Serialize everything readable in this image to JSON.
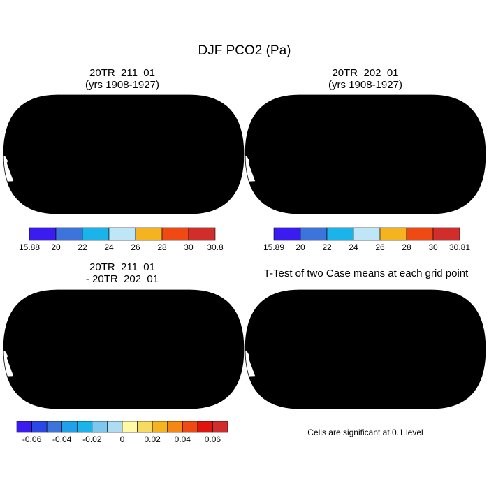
{
  "chart_data": [
    {
      "type": "heatmap",
      "projection": "robinson",
      "title": "20TR_211_01",
      "subtitle": "(yrs 1908-1927)",
      "colorbar": {
        "end_labels": [
          "15.88",
          "30.8"
        ],
        "ticks": [
          "20",
          "22",
          "24",
          "26",
          "28",
          "30"
        ],
        "colors": [
          "#3a1cf0",
          "#3d74dc",
          "#1ab4ea",
          "#bfe6f7",
          "#f5b41f",
          "#f04a14",
          "#d12d2b"
        ]
      }
    },
    {
      "type": "heatmap",
      "projection": "robinson",
      "title": "20TR_202_01",
      "subtitle": "(yrs 1908-1927)",
      "colorbar": {
        "end_labels": [
          "15.89",
          "30.81"
        ],
        "ticks": [
          "20",
          "22",
          "24",
          "26",
          "28",
          "30"
        ],
        "colors": [
          "#3a1cf0",
          "#3d74dc",
          "#1ab4ea",
          "#bfe6f7",
          "#f5b41f",
          "#f04a14",
          "#d12d2b"
        ]
      }
    },
    {
      "type": "heatmap",
      "projection": "robinson",
      "title": "20TR_211_01",
      "subtitle": "- 20TR_202_01",
      "colorbar": {
        "ticks": [
          "-0.06",
          "-0.04",
          "-0.02",
          "0",
          "0.02",
          "0.04",
          "0.06"
        ],
        "colors": [
          "#3a1cf0",
          "#2b47e6",
          "#3d74dc",
          "#1ea0ea",
          "#1ab4ea",
          "#7cc8ee",
          "#aedcf2",
          "#fff9a8",
          "#f7db60",
          "#f5b41f",
          "#f48812",
          "#f04a14",
          "#e0140e",
          "#d12d2b"
        ]
      }
    },
    {
      "type": "heatmap",
      "projection": "robinson",
      "title": "T-Test of two Case means at each grid point",
      "note": "Cells are significant at 0.1 level"
    }
  ],
  "figure": {
    "title": "DJF PCO2 (Pa)"
  },
  "colors": {
    "ocean": "#ffffff",
    "land_high": "#f04a14",
    "land_mid": "#f5b41f",
    "land_low": "#3a1cf0",
    "diff_pos": "#f7db60",
    "diff_neg": "#7cc8ee",
    "coast": "#000000"
  }
}
